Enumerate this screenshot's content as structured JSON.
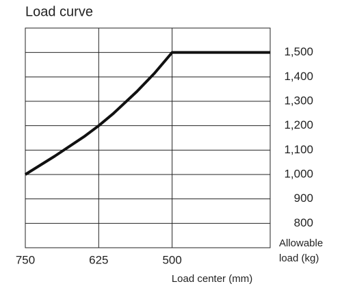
{
  "chart_data": {
    "type": "line",
    "title": "Load curve",
    "x_label": "Load center (mm)",
    "y_label": [
      "Allowable",
      "load (kg)"
    ],
    "x": [
      750,
      700,
      650,
      625,
      600,
      560,
      530,
      500,
      333
    ],
    "values": [
      1000,
      1075,
      1155,
      1200,
      1250,
      1340,
      1415,
      1500,
      1500
    ],
    "color": "#111111",
    "xlim": [
      750,
      333
    ],
    "xticks": [
      750,
      625,
      500
    ],
    "ylim": [
      700,
      1600
    ],
    "yticks": [
      800,
      900,
      {
        "value": 1000,
        "label": "1,000"
      },
      {
        "value": 1100,
        "label": "1,100"
      },
      {
        "value": 1200,
        "label": "1,200"
      },
      {
        "value": 1300,
        "label": "1,300"
      },
      {
        "value": 1400,
        "label": "1,400"
      },
      {
        "value": 1500,
        "label": "1,500"
      }
    ],
    "grid": true
  }
}
